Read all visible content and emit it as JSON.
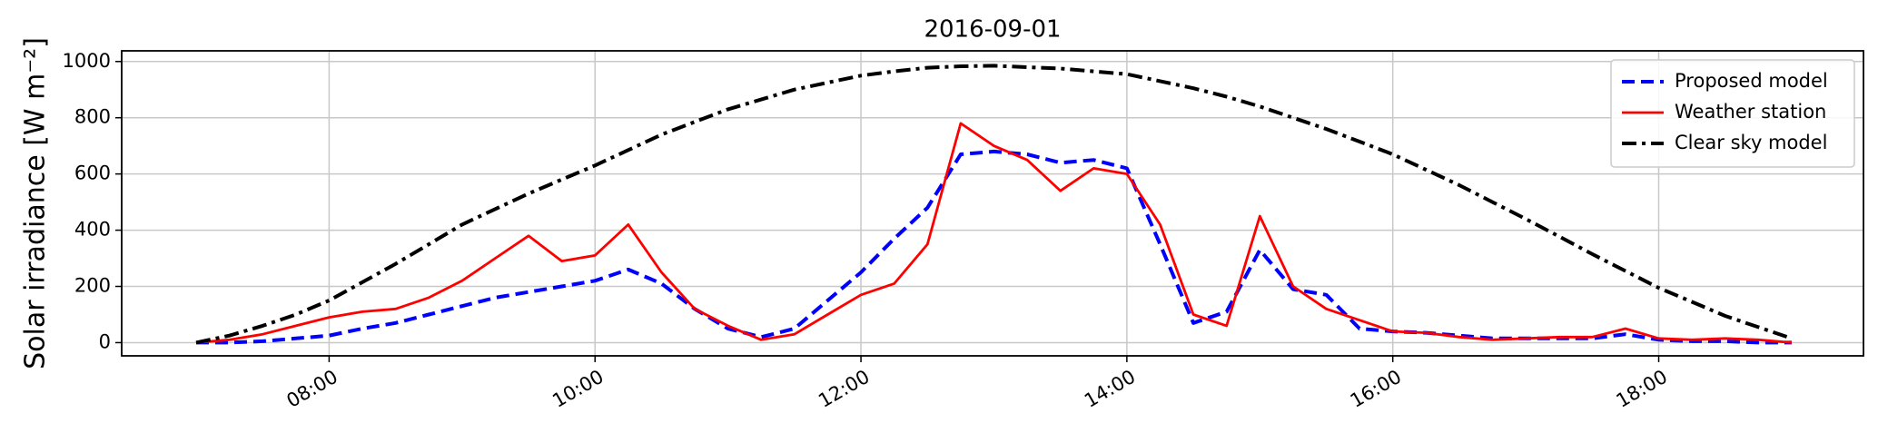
{
  "chart_data": {
    "type": "line",
    "title": "2016-09-01",
    "y_label": "Solar irradiance [W m⁻²]",
    "x": [
      7,
      7.25,
      7.5,
      7.75,
      8,
      8.25,
      8.5,
      8.75,
      9,
      9.25,
      9.5,
      9.75,
      10,
      10.25,
      10.5,
      10.75,
      11,
      11.25,
      11.5,
      11.75,
      12,
      12.25,
      12.5,
      12.75,
      13,
      13.25,
      13.5,
      13.75,
      14,
      14.25,
      14.5,
      14.75,
      15,
      15.25,
      15.5,
      15.75,
      16,
      16.25,
      16.5,
      16.75,
      17,
      17.25,
      17.5,
      17.75,
      18,
      18.25,
      18.5,
      18.75,
      19
    ],
    "series": [
      {
        "name": "Proposed model",
        "color": "#0000ff",
        "style": "dashed",
        "values": [
          0,
          0,
          5,
          15,
          25,
          50,
          70,
          100,
          130,
          160,
          180,
          200,
          220,
          260,
          210,
          120,
          50,
          20,
          50,
          150,
          250,
          370,
          480,
          670,
          680,
          670,
          640,
          650,
          620,
          350,
          70,
          110,
          330,
          190,
          170,
          50,
          40,
          35,
          25,
          15,
          15,
          15,
          15,
          30,
          10,
          5,
          5,
          0,
          0
        ]
      },
      {
        "name": "Weather station",
        "color": "#ff0000",
        "style": "solid",
        "values": [
          0,
          10,
          30,
          60,
          90,
          110,
          120,
          160,
          220,
          300,
          380,
          290,
          310,
          420,
          250,
          120,
          60,
          10,
          30,
          100,
          170,
          210,
          350,
          780,
          700,
          650,
          540,
          620,
          600,
          420,
          100,
          60,
          450,
          200,
          120,
          80,
          40,
          35,
          20,
          10,
          15,
          20,
          20,
          50,
          15,
          10,
          15,
          10,
          0
        ]
      },
      {
        "name": "Clear sky model",
        "color": "#000000",
        "style": "dashdot",
        "values": [
          0,
          25,
          60,
          100,
          150,
          215,
          280,
          350,
          420,
          475,
          530,
          580,
          630,
          685,
          740,
          785,
          830,
          865,
          900,
          925,
          950,
          965,
          978,
          983,
          985,
          980,
          975,
          965,
          955,
          930,
          905,
          875,
          840,
          800,
          760,
          715,
          670,
          615,
          560,
          500,
          440,
          378,
          315,
          255,
          195,
          145,
          95,
          55,
          15
        ]
      }
    ],
    "xlim": [
      6.44,
      19.54
    ],
    "xticks": [
      {
        "value": 8,
        "label": "08:00"
      },
      {
        "value": 10,
        "label": "10:00"
      },
      {
        "value": 12,
        "label": "12:00"
      },
      {
        "value": 14,
        "label": "14:00"
      },
      {
        "value": 16,
        "label": "16:00"
      },
      {
        "value": 18,
        "label": "18:00"
      }
    ],
    "ylim": [
      -47,
      1038
    ],
    "yticks": [
      0,
      200,
      400,
      600,
      800,
      1000
    ],
    "grid": true,
    "legend": "upper right"
  }
}
